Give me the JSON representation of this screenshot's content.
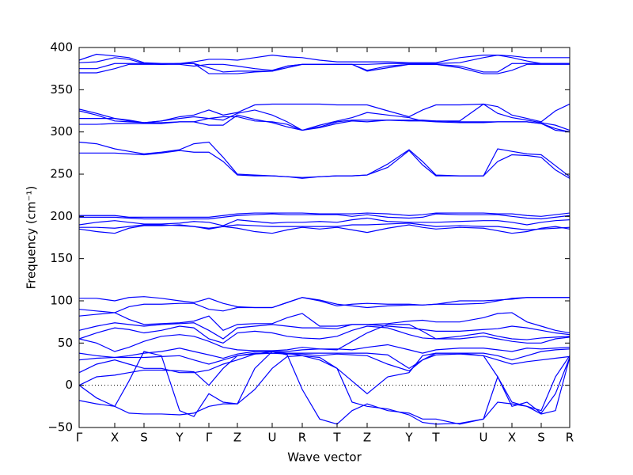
{
  "chart_data": {
    "type": "line",
    "xlabel": "Wave vector",
    "ylabel": "Frequency (cm⁻¹)",
    "color": "#0000ff",
    "zero_line": true,
    "xlim": [
      0,
      620
    ],
    "ylim": [
      -50,
      400
    ],
    "xticks": [
      {
        "value": 0,
        "label": "Γ"
      },
      {
        "value": 45,
        "label": "X"
      },
      {
        "value": 82,
        "label": "S"
      },
      {
        "value": 127,
        "label": "Y"
      },
      {
        "value": 164,
        "label": "Γ"
      },
      {
        "value": 200,
        "label": "Z"
      },
      {
        "value": 244,
        "label": "U"
      },
      {
        "value": 282,
        "label": "R"
      },
      {
        "value": 326,
        "label": "T"
      },
      {
        "value": 364,
        "label": "Z"
      },
      {
        "value": 417,
        "label": "Y"
      },
      {
        "value": 451,
        "label": "T"
      },
      {
        "value": 511,
        "label": "U"
      },
      {
        "value": 547,
        "label": "X"
      },
      {
        "value": 584,
        "label": "S"
      },
      {
        "value": 620,
        "label": "R"
      }
    ],
    "yticks": [
      {
        "value": -50,
        "label": "−50"
      },
      0,
      50,
      100,
      150,
      200,
      250,
      300,
      350,
      400
    ],
    "x": [
      0,
      22,
      45,
      63,
      82,
      104,
      127,
      145,
      164,
      182,
      200,
      222,
      244,
      263,
      282,
      304,
      326,
      345,
      364,
      390,
      417,
      434,
      451,
      481,
      511,
      529,
      547,
      566,
      584,
      602,
      620
    ],
    "series": [
      {
        "values": [
          385,
          392,
          390,
          388,
          382,
          381,
          381,
          383,
          386,
          386,
          385,
          388,
          391,
          389,
          388,
          385,
          383,
          383,
          383,
          383,
          382,
          382,
          382,
          388,
          391,
          391,
          390,
          388,
          388,
          388,
          388
        ]
      },
      {
        "values": [
          382,
          383,
          388,
          386,
          381,
          380,
          380,
          378,
          380,
          380,
          378,
          375,
          373,
          378,
          380,
          380,
          380,
          380,
          380,
          381,
          381,
          381,
          381,
          382,
          388,
          391,
          388,
          384,
          381,
          381,
          381
        ]
      },
      {
        "values": [
          375,
          375,
          381,
          381,
          381,
          380,
          381,
          381,
          376,
          371,
          372,
          372,
          372,
          378,
          380,
          380,
          380,
          380,
          373,
          378,
          380,
          380,
          380,
          378,
          371,
          371,
          381,
          381,
          381,
          381,
          381
        ]
      },
      {
        "values": [
          370,
          370,
          375,
          380,
          380,
          380,
          381,
          381,
          369,
          369,
          369,
          371,
          372,
          376,
          380,
          380,
          380,
          380,
          372,
          376,
          380,
          380,
          380,
          376,
          369,
          369,
          373,
          380,
          380,
          380,
          380
        ]
      },
      {
        "values": [
          327,
          322,
          316,
          314,
          311,
          313,
          318,
          320,
          326,
          320,
          323,
          332,
          333,
          333,
          333,
          333,
          332,
          332,
          332,
          325,
          318,
          326,
          332,
          332,
          333,
          330,
          320,
          316,
          312,
          325,
          333
        ]
      },
      {
        "values": [
          325,
          320,
          313,
          312,
          311,
          313,
          316,
          318,
          316,
          314,
          322,
          326,
          320,
          312,
          302,
          308,
          313,
          317,
          323,
          320,
          317,
          313,
          313,
          313,
          333,
          322,
          317,
          314,
          311,
          308,
          302
        ]
      },
      {
        "values": [
          316,
          316,
          316,
          313,
          311,
          311,
          312,
          312,
          316,
          318,
          318,
          313,
          312,
          309,
          302,
          306,
          312,
          314,
          314,
          314,
          314,
          314,
          313,
          312,
          312,
          312,
          312,
          312,
          310,
          302,
          300
        ]
      },
      {
        "values": [
          309,
          309,
          310,
          310,
          310,
          310,
          312,
          312,
          308,
          308,
          320,
          315,
          311,
          306,
          302,
          305,
          310,
          313,
          312,
          314,
          313,
          313,
          312,
          311,
          311,
          312,
          312,
          312,
          310,
          304,
          300
        ]
      },
      {
        "values": [
          288,
          286,
          280,
          277,
          274,
          276,
          279,
          286,
          288,
          270,
          250,
          249,
          248,
          247,
          246,
          247,
          248,
          248,
          249,
          262,
          279,
          265,
          249,
          248,
          248,
          280,
          277,
          274,
          273,
          260,
          247
        ]
      },
      {
        "values": [
          275,
          275,
          275,
          274,
          273,
          275,
          278,
          276,
          276,
          265,
          249,
          248,
          248,
          247,
          245,
          247,
          248,
          248,
          249,
          258,
          278,
          261,
          248,
          248,
          248,
          265,
          273,
          272,
          270,
          255,
          245
        ]
      },
      {
        "values": [
          201,
          201,
          201,
          199,
          199,
          199,
          199,
          199,
          199,
          201,
          203,
          204,
          204,
          204,
          204,
          203,
          203,
          203,
          204,
          203,
          201,
          202,
          204,
          204,
          204,
          203,
          203,
          201,
          200,
          202,
          204
        ]
      },
      {
        "values": [
          199,
          199,
          199,
          198,
          197,
          197,
          197,
          197,
          197,
          199,
          201,
          202,
          203,
          202,
          202,
          202,
          202,
          200,
          202,
          199,
          198,
          199,
          203,
          202,
          202,
          202,
          200,
          198,
          197,
          199,
          201
        ]
      },
      {
        "values": [
          190,
          193,
          195,
          193,
          191,
          191,
          192,
          194,
          193,
          189,
          196,
          194,
          192,
          193,
          193,
          194,
          193,
          196,
          198,
          194,
          193,
          193,
          193,
          194,
          195,
          195,
          193,
          190,
          193,
          195,
          196
        ]
      },
      {
        "values": [
          185,
          182,
          180,
          186,
          189,
          189,
          190,
          188,
          186,
          188,
          186,
          182,
          180,
          184,
          187,
          185,
          187,
          184,
          181,
          186,
          190,
          187,
          185,
          187,
          186,
          183,
          180,
          182,
          186,
          188,
          185
        ]
      },
      {
        "values": [
          187,
          187,
          186,
          188,
          190,
          190,
          189,
          188,
          185,
          188,
          190,
          189,
          188,
          188,
          188,
          188,
          188,
          190,
          190,
          191,
          192,
          190,
          188,
          189,
          188,
          188,
          186,
          184,
          185,
          186,
          187
        ]
      },
      {
        "values": [
          103,
          103,
          100,
          104,
          105,
          103,
          100,
          98,
          103,
          97,
          93,
          92,
          92,
          98,
          104,
          100,
          94,
          96,
          97,
          96,
          96,
          95,
          96,
          100,
          100,
          101,
          102,
          104,
          104,
          104,
          104
        ]
      },
      {
        "values": [
          90,
          88,
          86,
          93,
          96,
          96,
          97,
          97,
          90,
          88,
          92,
          92,
          92,
          98,
          104,
          101,
          96,
          94,
          92,
          94,
          95,
          95,
          96,
          96,
          97,
          100,
          103,
          104,
          104,
          104,
          104
        ]
      },
      {
        "values": [
          82,
          84,
          86,
          78,
          72,
          73,
          74,
          76,
          82,
          65,
          72,
          73,
          73,
          80,
          85,
          70,
          70,
          72,
          72,
          73,
          76,
          77,
          75,
          75,
          80,
          85,
          86,
          75,
          70,
          65,
          62
        ]
      },
      {
        "values": [
          65,
          70,
          74,
          72,
          70,
          72,
          73,
          74,
          65,
          55,
          68,
          70,
          72,
          70,
          68,
          68,
          67,
          72,
          72,
          70,
          68,
          66,
          64,
          64,
          66,
          67,
          70,
          68,
          65,
          62,
          60
        ]
      },
      {
        "values": [
          55,
          62,
          68,
          66,
          62,
          65,
          70,
          68,
          55,
          50,
          62,
          64,
          62,
          58,
          56,
          55,
          58,
          65,
          70,
          68,
          60,
          56,
          55,
          58,
          62,
          58,
          55,
          54,
          56,
          57,
          58
        ]
      },
      {
        "values": [
          55,
          50,
          40,
          45,
          52,
          58,
          60,
          58,
          52,
          45,
          42,
          41,
          41,
          42,
          45,
          43,
          42,
          52,
          62,
          72,
          72,
          64,
          55,
          55,
          58,
          55,
          52,
          50,
          50,
          55,
          57
        ]
      },
      {
        "values": [
          38,
          35,
          33,
          35,
          38,
          40,
          44,
          40,
          36,
          32,
          37,
          40,
          40,
          40,
          42,
          43,
          43,
          42,
          45,
          48,
          42,
          38,
          42,
          44,
          44,
          42,
          40,
          44,
          43,
          44,
          45
        ]
      },
      {
        "values": [
          30,
          32,
          33,
          33,
          33,
          34,
          35,
          30,
          25,
          30,
          35,
          38,
          38,
          38,
          38,
          38,
          38,
          38,
          38,
          36,
          20,
          30,
          38,
          38,
          38,
          35,
          30,
          35,
          40,
          42,
          43
        ]
      },
      {
        "values": [
          15,
          25,
          30,
          25,
          20,
          20,
          15,
          15,
          18,
          25,
          30,
          37,
          38,
          37,
          37,
          35,
          37,
          36,
          35,
          25,
          17,
          30,
          36,
          37,
          35,
          30,
          25,
          28,
          30,
          32,
          34
        ]
      },
      {
        "values": [
          0,
          10,
          12,
          15,
          18,
          18,
          17,
          16,
          0,
          20,
          35,
          37,
          40,
          38,
          35,
          30,
          20,
          5,
          -10,
          10,
          15,
          35,
          38,
          38,
          35,
          10,
          -20,
          -25,
          -30,
          10,
          35
        ]
      },
      {
        "values": [
          0,
          -15,
          -25,
          5,
          40,
          35,
          -30,
          -37,
          -10,
          -20,
          -22,
          20,
          40,
          36,
          -5,
          -40,
          -46,
          -30,
          -22,
          -30,
          -33,
          -40,
          -40,
          -46,
          -40,
          10,
          -25,
          -20,
          -33,
          -10,
          33
        ]
      },
      {
        "values": [
          -18,
          -22,
          -25,
          -33,
          -34,
          -34,
          -35,
          -33,
          -25,
          -22,
          -22,
          -5,
          20,
          34,
          35,
          33,
          20,
          -20,
          -25,
          -28,
          -35,
          -44,
          -46,
          -45,
          -40,
          -20,
          -22,
          -25,
          -34,
          -30,
          33
        ]
      }
    ]
  }
}
